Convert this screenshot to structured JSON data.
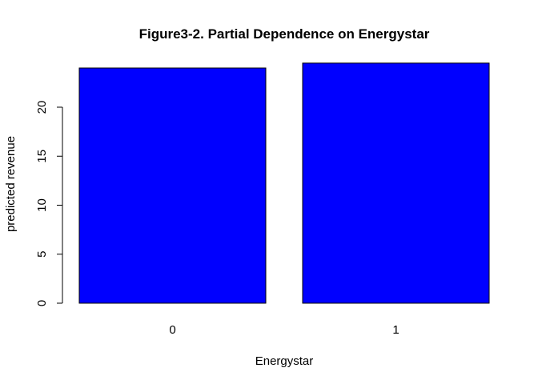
{
  "chart_data": {
    "type": "bar",
    "title": "Figure3-2. Partial Dependence on Energystar",
    "xlabel": "Energystar",
    "ylabel": "predicted revenue",
    "categories": [
      "0",
      "1"
    ],
    "values": [
      24.0,
      24.5
    ],
    "ylim": [
      0,
      24.5
    ],
    "yticks": [
      "0",
      "5",
      "10",
      "15",
      "20"
    ],
    "bar_color": "#0000ff",
    "grid": false,
    "legend": "none"
  }
}
